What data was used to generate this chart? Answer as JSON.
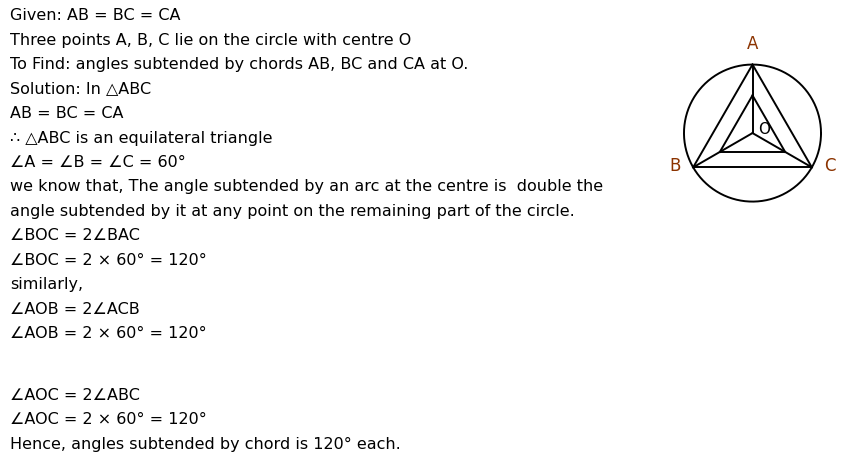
{
  "background_color": "#ffffff",
  "text_color": "#000000",
  "label_color": "#8B3300",
  "texts": [
    "Given: AB = BC = CA",
    "Three points A, B, C lie on the circle with centre O",
    "To Find: angles subtended by chords AB, BC and CA at O.",
    "Solution: In △ABC",
    "AB = BC = CA",
    "∴ △ABC is an equilateral triangle",
    "∠A = ∠B = ∠C = 60°",
    "we know that, The angle subtended by an arc at the centre is  double the",
    "angle subtended by it at any point on the remaining part of the circle.",
    "∠BOC = 2∠BAC",
    "∠BOC = 2 × 60° = 120°",
    "similarly,",
    "∠AOB = 2∠ACB",
    "∠AOB = 2 × 60° = 120°",
    "",
    "∠AOC = 2∠ABC",
    "∠AOC = 2 × 60° = 120°",
    "Hence, angles subtended by chord is 120° each."
  ],
  "triangle_angles_deg": [
    90,
    210,
    330
  ],
  "point_labels": [
    "A",
    "B",
    "C"
  ],
  "center_label": "O"
}
